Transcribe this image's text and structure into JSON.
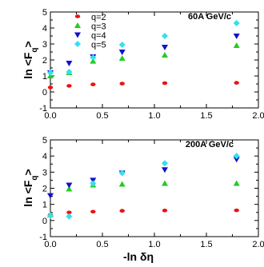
{
  "chart_data": [
    {
      "type": "scatter",
      "annotation": "60A GeV/c",
      "ylabel_main": "ln <F",
      "ylabel_sub": "q",
      "ylabel_close": ">",
      "xlim": [
        0,
        2
      ],
      "ylim": [
        -1,
        5
      ],
      "xticks": [
        "0.0",
        "0.5",
        "1.0",
        "1.5",
        "2.0"
      ],
      "yticks": [
        "-1",
        "0",
        "1",
        "2",
        "3",
        "4",
        "5"
      ],
      "show_x_tick_labels": true,
      "legend": {
        "position": "top-left"
      },
      "series": [
        {
          "name": "q=2",
          "color": "#ee1111",
          "marker": "circle",
          "x": [
            0.0,
            0.18,
            0.41,
            0.69,
            1.1,
            1.79
          ],
          "y": [
            0.28,
            0.38,
            0.47,
            0.52,
            0.55,
            0.57
          ]
        },
        {
          "name": "q=3",
          "color": "#22cc22",
          "marker": "triangle-up",
          "x": [
            0.0,
            0.18,
            0.41,
            0.69,
            1.1,
            1.79
          ],
          "y": [
            1.0,
            1.2,
            1.92,
            2.1,
            2.3,
            2.9
          ]
        },
        {
          "name": "q=4",
          "color": "#1111cc",
          "marker": "triangle-down",
          "x": [
            0.0,
            0.18,
            0.41,
            0.69,
            1.1,
            1.79
          ],
          "y": [
            1.2,
            1.8,
            2.2,
            2.5,
            2.8,
            3.5
          ]
        },
        {
          "name": "q=5",
          "color": "#33e0ee",
          "marker": "diamond",
          "x": [
            0.0,
            0.18,
            0.41,
            0.69,
            1.1,
            1.79
          ],
          "y": [
            1.2,
            1.25,
            2.15,
            2.95,
            3.5,
            4.3
          ]
        }
      ]
    },
    {
      "type": "scatter",
      "annotation": "200A GeV/c",
      "ylabel_main": "ln <F",
      "ylabel_sub": "q",
      "ylabel_close": ">",
      "xlabel": "-ln δη",
      "xlim": [
        0,
        2
      ],
      "ylim": [
        -1,
        5
      ],
      "xticks": [
        "0.0",
        "0.5",
        "1.0",
        "1.5",
        "2.0"
      ],
      "yticks": [
        "-1",
        "0",
        "1",
        "2",
        "3",
        "4",
        "5"
      ],
      "show_x_tick_labels": true,
      "series": [
        {
          "name": "q=2",
          "color": "#ee1111",
          "marker": "circle",
          "x": [
            0.0,
            0.18,
            0.41,
            0.69,
            1.1,
            1.79
          ],
          "y": [
            0.35,
            0.5,
            0.55,
            0.6,
            0.62,
            0.63
          ]
        },
        {
          "name": "q=3",
          "color": "#22cc22",
          "marker": "triangle-up",
          "x": [
            0.0,
            0.18,
            0.41,
            0.69,
            1.1,
            1.79
          ],
          "y": [
            0.35,
            1.95,
            2.2,
            2.25,
            2.3,
            2.3
          ]
        },
        {
          "name": "q=4",
          "color": "#1111cc",
          "marker": "triangle-down",
          "x": [
            0.0,
            0.18,
            0.41,
            0.69,
            1.1,
            1.79
          ],
          "y": [
            1.55,
            2.2,
            2.5,
            2.95,
            3.15,
            3.8
          ]
        },
        {
          "name": "q=5",
          "color": "#33e0ee",
          "marker": "diamond",
          "x": [
            0.0,
            0.18,
            0.41,
            0.69,
            1.1,
            1.79
          ],
          "y": [
            0.3,
            0.25,
            2.3,
            2.95,
            3.55,
            4.0
          ]
        }
      ]
    }
  ]
}
